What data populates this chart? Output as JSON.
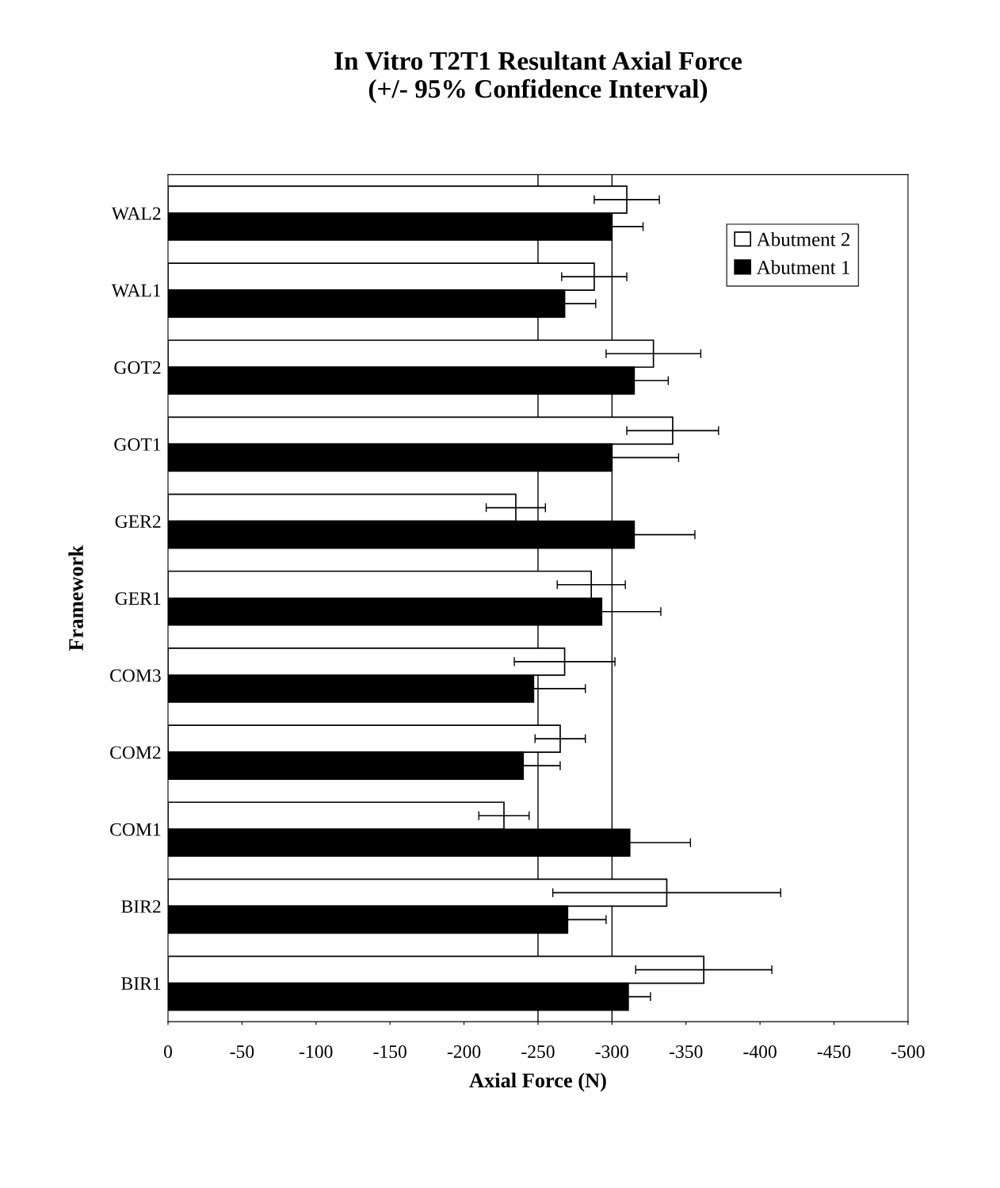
{
  "chart_data": {
    "type": "bar",
    "orientation": "horizontal",
    "title": "In Vitro T2T1 Resultant Axial Force\n(+/- 95% Confidence Interval)",
    "xlabel": "Axial Force (N)",
    "ylabel": "Framework",
    "categories": [
      "WAL2",
      "WAL1",
      "GOT2",
      "GOT1",
      "GER2",
      "GER1",
      "COM3",
      "COM2",
      "COM1",
      "BIR2",
      "BIR1"
    ],
    "series": [
      {
        "name": "Abutment 2",
        "color": "#ffffff",
        "values": [
          -310,
          -288,
          -328,
          -341,
          -235,
          -286,
          -268,
          -265,
          -227,
          -337,
          -362
        ],
        "errors": [
          22,
          22,
          32,
          31,
          20,
          23,
          34,
          17,
          17,
          77,
          46
        ]
      },
      {
        "name": "Abutment 1",
        "color": "#000000",
        "values": [
          -300,
          -268,
          -315,
          -300,
          -315,
          -293,
          -247,
          -240,
          -312,
          -270,
          -311
        ],
        "errors": [
          21,
          21,
          23,
          45,
          41,
          40,
          35,
          25,
          41,
          26,
          15
        ]
      }
    ],
    "xlim": [
      0,
      -500
    ],
    "xticks": [
      0,
      -50,
      -100,
      -150,
      -200,
      -250,
      -300,
      -350,
      -400,
      -450,
      -500
    ],
    "ref_lines": [
      {
        "axis": "x",
        "value": -250,
        "color": "#000000"
      },
      {
        "axis": "x",
        "value": -300,
        "color": "#000000"
      }
    ],
    "legend": "top right",
    "grid": false
  }
}
